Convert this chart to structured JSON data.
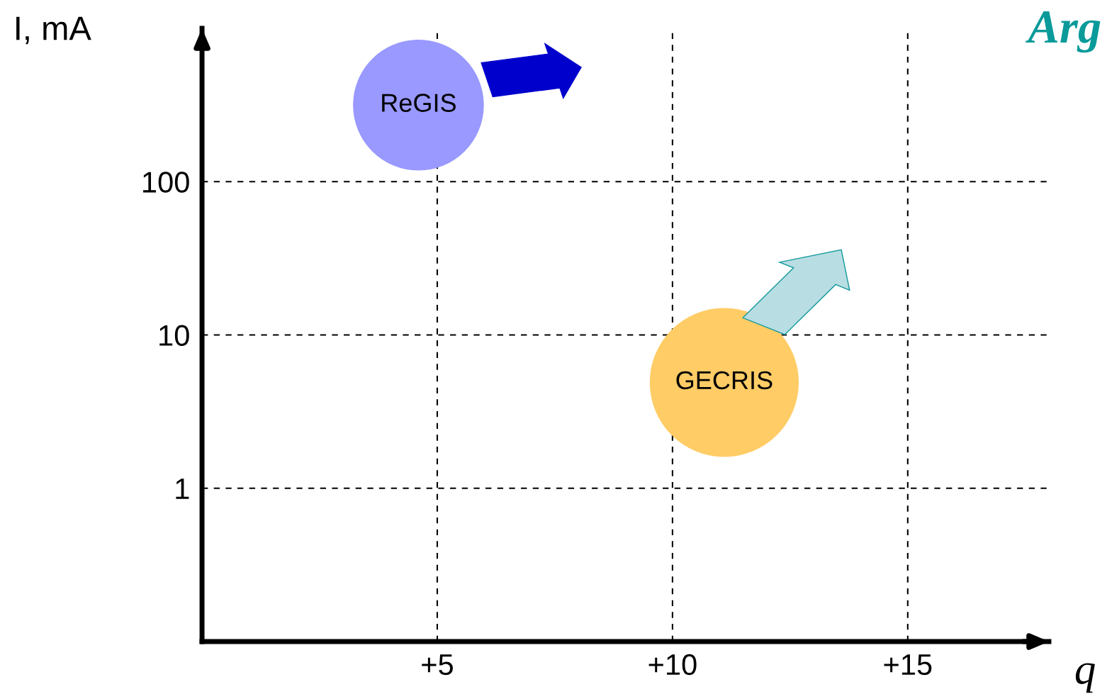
{
  "chart_data": {
    "type": "bubble",
    "title": "Arg",
    "xlabel": "q",
    "ylabel": "I, mA",
    "series": [
      {
        "name": "ReGIS",
        "color": "#9999ff",
        "x": [
          4.6
        ],
        "values": [
          316
        ],
        "sizes": [
          0.77
        ]
      },
      {
        "name": "GECRIS",
        "color": "#ffcc66",
        "x": [
          11.1
        ],
        "values": [
          4.9
        ],
        "sizes": [
          1
        ]
      }
    ],
    "xlim": [
      0,
      18
    ],
    "xticks": [
      {
        "value": 5,
        "label": "+5"
      },
      {
        "value": 10,
        "label": "+10"
      },
      {
        "value": 15,
        "label": "+15"
      }
    ],
    "ylim": [
      0.1,
      1000
    ],
    "yticks": [
      1,
      10,
      100
    ],
    "log": "y",
    "grid": true,
    "line_style": "dashed",
    "legend": false
  }
}
